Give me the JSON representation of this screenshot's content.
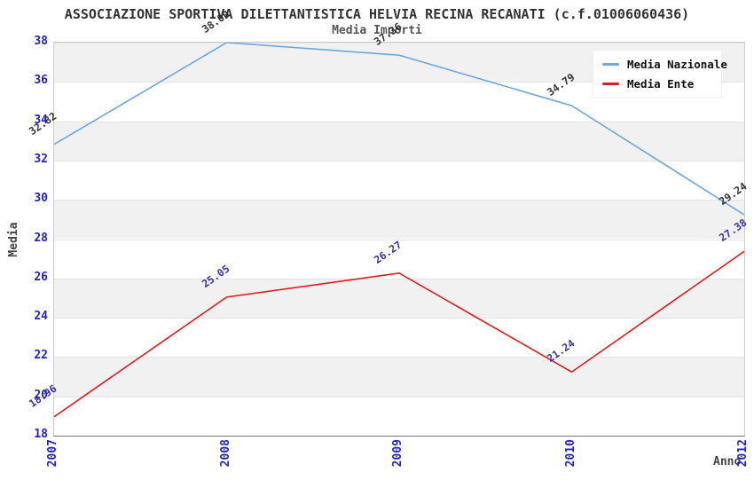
{
  "chart_data": {
    "type": "line",
    "title": "ASSOCIAZIONE SPORTIVA DILETTANTISTICA HELVIA RECINA RECANATI (c.f.01006060436)",
    "subtitle": "Media Importi",
    "xlabel": "Anno",
    "ylabel": "Media",
    "categories": [
      "2007",
      "2008",
      "2009",
      "2010",
      "2012"
    ],
    "series": [
      {
        "name": "Media Nazionale",
        "color": "#6FA8DC",
        "label_color": "#333333",
        "values": [
          32.82,
          38.0,
          37.36,
          34.79,
          29.24
        ]
      },
      {
        "name": "Media Ente",
        "color": "#E41A1A",
        "label_color": "#3333AA",
        "values": [
          18.96,
          25.05,
          26.27,
          21.24,
          27.38
        ]
      }
    ],
    "ylim": [
      18,
      38
    ],
    "ytick_step": 2,
    "grid": "horizontal-bands",
    "band_colors": [
      "#F1F1F1",
      "#FFFFFF"
    ],
    "tick_color": "#2222CC",
    "legend_position": "top-right"
  }
}
